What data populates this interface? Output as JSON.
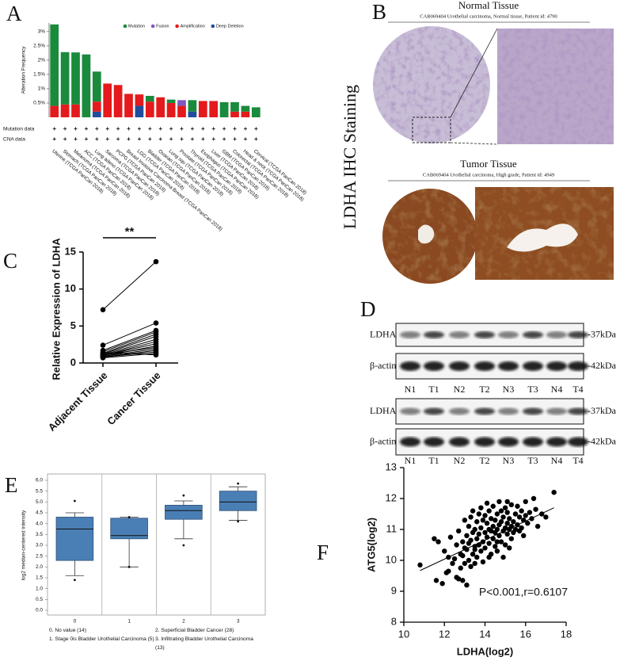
{
  "chart_data": [
    {
      "type": "bar",
      "label": "A",
      "ylabel": "Alteration Frequency",
      "categories": [
        "Uterine (TCGA PanCan 2018)",
        "Stomach (TCGA PanCan 2018)",
        "Melanoma (TCGA PanCan 2018)",
        "ACC (TCGA PanCan 2018)",
        "Lung adeno (TCGA PanCan 2018)",
        "Sarcoma (TCGA PanCan 2018)",
        "PCPG (TCGA PanCan 2018)",
        "Breast Invasive Carcinoma Breast (TCGA PanCan 2018)",
        "LGG (TCGA PanCan 2018)",
        "Bladder (TCGA PanCan 2018)",
        "Ovarian (TCGA PanCan 2018)",
        "Lung squ (TCGA PanCan 2018)",
        "Prostate (TCGA PanCan 2018)",
        "Thyroid (TCGA PanCan 2018)",
        "Esophagus (TCGA PanCan 2018)",
        "Liver (TCGA PanCan 2018)",
        "GBM (TCGA PanCan 2018)",
        "Colorectal (TCGA PanCan 2018)",
        "Head & neck (TCGA PanCan 2018)",
        "Cervical (TCGA PanCan 2018)"
      ],
      "series": [
        {
          "name": "Mutation",
          "color": "#1a8a3c",
          "values": [
            2.85,
            1.83,
            1.82,
            2.2,
            1.05,
            0,
            0,
            0,
            0,
            0.2,
            0,
            0.12,
            0,
            0.4,
            0,
            0,
            0.53,
            0.33,
            0.2,
            0.35
          ]
        },
        {
          "name": "Fusion",
          "color": "#7e57c2",
          "values": [
            0,
            0,
            0,
            0,
            0,
            0,
            0,
            0,
            0,
            0,
            0,
            0,
            0.2,
            0,
            0,
            0,
            0,
            0,
            0,
            0
          ]
        },
        {
          "name": "Amplification",
          "color": "#e41a1c",
          "values": [
            0.4,
            0.45,
            0.45,
            0,
            0.35,
            1.18,
            1.13,
            0.82,
            0.4,
            0.55,
            0.7,
            0.5,
            0.4,
            0,
            0.57,
            0.57,
            0,
            0.2,
            0.2,
            0
          ]
        },
        {
          "name": "Deep Deletion",
          "color": "#1f4e9c",
          "values": [
            0,
            0,
            0,
            0,
            0.2,
            0,
            0,
            0,
            0.4,
            0,
            0,
            0,
            0,
            0.2,
            0,
            0,
            0,
            0,
            0,
            0
          ]
        }
      ],
      "ylim": [
        0,
        3.3
      ],
      "yticks": [
        {
          "value": 0.5,
          "label": "0.5%"
        },
        {
          "value": 1,
          "label": "1%"
        },
        {
          "value": 1.5,
          "label": "1.5%"
        },
        {
          "value": 2,
          "label": "2%"
        },
        {
          "value": 2.5,
          "label": "2.5%"
        },
        {
          "value": 3,
          "label": "3%"
        }
      ],
      "rows": [
        {
          "name": "Mutation data",
          "marks": [
            "+",
            "+",
            "+",
            "+",
            "+",
            "+",
            "+",
            "+",
            "+",
            "+",
            "+",
            "+",
            "+",
            "+",
            "+",
            "+",
            "+",
            "+",
            "+",
            "+"
          ]
        },
        {
          "name": "CNA data",
          "marks": [
            "+",
            "+",
            "+",
            "+",
            "+",
            "+",
            "+",
            "+",
            "+",
            "+",
            "+",
            "+",
            "+",
            "+",
            "+",
            "+",
            "+",
            "+",
            "+",
            "+"
          ]
        }
      ]
    },
    {
      "type": "paired",
      "label": "C",
      "ylabel": "Relative Expression of LDHA",
      "categories": [
        "Adjacent Tissue",
        "Cancer Tissue"
      ],
      "significance": "**",
      "values": [
        [
          7.2,
          13.7
        ],
        [
          2.4,
          5.4
        ],
        [
          1.7,
          4.4
        ],
        [
          1.5,
          4.2
        ],
        [
          1.3,
          3.9
        ],
        [
          1.2,
          3.6
        ],
        [
          1.1,
          3.2
        ],
        [
          1.0,
          2.9
        ],
        [
          1.0,
          2.6
        ],
        [
          0.9,
          2.3
        ],
        [
          0.9,
          1.9
        ],
        [
          0.8,
          1.7
        ],
        [
          0.8,
          1.5
        ],
        [
          0.7,
          1.3
        ],
        [
          1.4,
          1.1
        ],
        [
          1.1,
          2.1
        ]
      ],
      "color": "#000000",
      "ylim": [
        0,
        15
      ],
      "yticks": [
        0,
        5,
        10,
        15
      ]
    },
    {
      "type": "box",
      "label": "E",
      "ylabel": "log2 median-centered intensity",
      "categories": [
        "0",
        "1",
        "2",
        "3"
      ],
      "boxes": [
        {
          "min": 1.6,
          "q1": 2.3,
          "median": 3.75,
          "q3": 4.3,
          "max": 4.5,
          "points": [
            5.05,
            1.4
          ]
        },
        {
          "min": 2.0,
          "q1": 3.3,
          "median": 3.45,
          "q3": 4.25,
          "max": 4.3,
          "points": [
            4.3,
            2.0
          ]
        },
        {
          "min": 3.3,
          "q1": 4.2,
          "median": 4.6,
          "q3": 4.85,
          "max": 5.05,
          "points": [
            5.3,
            3.0
          ]
        },
        {
          "min": 4.15,
          "q1": 4.6,
          "median": 5.0,
          "q3": 5.5,
          "max": 5.7,
          "points": [
            5.85,
            4.1
          ]
        }
      ],
      "color": "#4a7fb5",
      "notes": [
        "0. No value (14)",
        "1. Stage 0is Bladder Urothelial Carcinoma (5)",
        "2. Superficial Bladder Cancer (28)",
        "3. Infiltrating Bladder Urothelial Carcinoma",
        "(13)"
      ],
      "ylim": [
        0,
        6
      ],
      "yticks": [
        {
          "value": 0,
          "label": "0.0"
        },
        {
          "value": 0.5,
          "label": "0.5"
        },
        {
          "value": 1,
          "label": "1.0"
        },
        {
          "value": 1.5,
          "label": "1.5"
        },
        {
          "value": 2,
          "label": "2.0"
        },
        {
          "value": 2.5,
          "label": "2.5"
        },
        {
          "value": 3,
          "label": "3.0"
        },
        {
          "value": 3.5,
          "label": "3.5"
        },
        {
          "value": 4,
          "label": "4.0"
        },
        {
          "value": 4.5,
          "label": "4.5"
        },
        {
          "value": 5,
          "label": "5.0"
        },
        {
          "value": 5.5,
          "label": "5.5"
        },
        {
          "value": 6,
          "label": "6.0"
        }
      ]
    },
    {
      "type": "scatter",
      "label": "F",
      "xlabel": "LDHA(log2)",
      "ylabel": "ATG5(log2)",
      "annotation": "P<0.001,r=0.6107",
      "color": "#000000",
      "x": [
        10.8,
        11.5,
        11.6,
        11.7,
        11.9,
        12.0,
        12.1,
        12.2,
        12.3,
        12.4,
        12.5,
        12.6,
        12.6,
        12.7,
        12.7,
        12.8,
        12.8,
        12.9,
        12.9,
        13.0,
        13.0,
        13.0,
        13.1,
        13.1,
        13.2,
        13.2,
        13.2,
        13.3,
        13.3,
        13.3,
        13.4,
        13.4,
        13.4,
        13.5,
        13.5,
        13.5,
        13.6,
        13.6,
        13.6,
        13.7,
        13.7,
        13.7,
        13.8,
        13.8,
        13.8,
        13.9,
        13.9,
        13.9,
        14.0,
        14.0,
        14.0,
        14.1,
        14.1,
        14.1,
        14.2,
        14.2,
        14.2,
        14.3,
        14.3,
        14.3,
        14.4,
        14.4,
        14.4,
        14.5,
        14.5,
        14.5,
        14.6,
        14.6,
        14.6,
        14.7,
        14.7,
        14.7,
        14.8,
        14.8,
        14.8,
        14.9,
        14.9,
        14.9,
        15.0,
        15.0,
        15.0,
        15.1,
        15.1,
        15.1,
        15.2,
        15.2,
        15.2,
        15.3,
        15.3,
        15.3,
        15.4,
        15.4,
        15.5,
        15.5,
        15.6,
        15.6,
        15.7,
        15.7,
        15.8,
        15.8,
        15.9,
        15.9,
        16.0,
        16.0,
        16.1,
        16.2,
        16.3,
        16.4,
        16.5,
        16.6,
        16.8,
        17.0,
        17.4,
        12.2,
        12.9,
        13.1,
        13.5,
        14.2,
        14.6,
        15.1
      ],
      "y": [
        9.85,
        10.7,
        9.35,
        10.6,
        9.25,
        10.3,
        9.6,
        10.1,
        10.75,
        9.9,
        10.05,
        9.45,
        10.5,
        9.4,
        10.95,
        10.2,
        9.75,
        10.6,
        9.35,
        10.4,
        9.9,
        11.3,
        10.35,
        10.8,
        10.0,
        11.1,
        10.55,
        9.8,
        10.65,
        11.4,
        10.2,
        10.9,
        11.6,
        10.45,
        11.0,
        9.9,
        10.7,
        11.25,
        10.1,
        10.5,
        11.5,
        10.85,
        10.3,
        11.05,
        11.7,
        10.6,
        11.3,
        9.95,
        10.9,
        11.45,
        10.4,
        10.75,
        11.2,
        11.85,
        10.55,
        11.0,
        11.6,
        10.2,
        10.95,
        11.35,
        10.7,
        11.1,
        11.75,
        10.45,
        11.3,
        10.9,
        11.0,
        11.5,
        10.3,
        11.15,
        10.8,
        11.9,
        10.6,
        11.25,
        11.6,
        10.95,
        11.4,
        10.1,
        11.05,
        11.7,
        10.5,
        11.2,
        10.85,
        11.55,
        11.0,
        11.35,
        10.4,
        11.1,
        11.8,
        10.7,
        11.25,
        10.9,
        11.5,
        11.0,
        11.15,
        11.75,
        10.95,
        11.4,
        11.6,
        11.05,
        11.3,
        10.8,
        11.45,
        11.9,
        11.2,
        11.55,
        11.35,
        12.0,
        11.65,
        11.1,
        11.5,
        11.4,
        12.2,
        9.65,
        10.15,
        9.2,
        10.35,
        10.1,
        10.6,
        11.9
      ],
      "fit_line": {
        "x": [
          10.8,
          17.4
        ],
        "y": [
          9.67,
          11.7
        ]
      },
      "xlim": [
        10,
        18
      ],
      "xticks": [
        10,
        12,
        14,
        16,
        18
      ],
      "ylim": [
        8,
        13
      ],
      "yticks": [
        8,
        9,
        10,
        11,
        12,
        13
      ]
    }
  ],
  "ihc": {
    "label": "B",
    "side_title": "LDHA IHC Staining",
    "panels": [
      {
        "title": "Normal Tissue",
        "caption": "CAB069404 Urothelial carcinoma, Normal tissue, Patient id: 4790"
      },
      {
        "title": "Tumor Tissue",
        "caption": "CAB069404 Urothelial carcinoma, High grade, Patient id: 4949"
      }
    ]
  },
  "western_blot": {
    "label": "D",
    "blots": [
      {
        "rows": [
          {
            "name": "LDHA",
            "size": "-37kDa"
          },
          {
            "name": "β-actin",
            "size": "-42kDa"
          }
        ],
        "lanes": [
          "N1",
          "T1",
          "N2",
          "T2",
          "N3",
          "T3",
          "N4",
          "T4"
        ]
      },
      {
        "rows": [
          {
            "name": "LDHA",
            "size": "-37kDa"
          },
          {
            "name": "β-actin",
            "size": "-42kDa"
          }
        ],
        "lanes": [
          "N1",
          "T1",
          "N2",
          "T2",
          "N3",
          "T3",
          "N4",
          "T4"
        ]
      }
    ]
  }
}
